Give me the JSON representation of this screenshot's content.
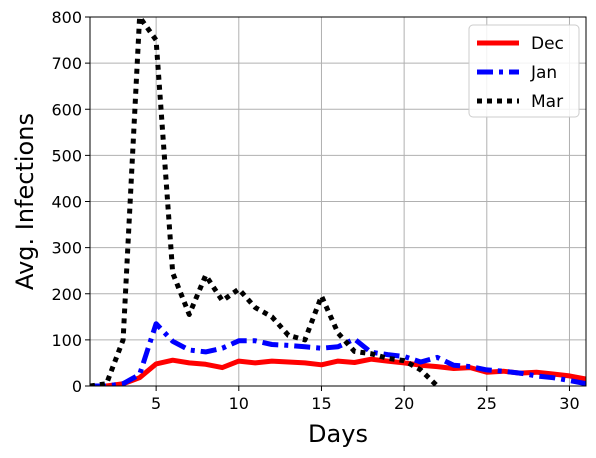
{
  "chart_data": {
    "type": "line",
    "title": "",
    "xlabel": "Days",
    "ylabel": "Avg. Infections",
    "xlim": [
      1,
      31
    ],
    "ylim": [
      0,
      800
    ],
    "xticks": [
      5,
      10,
      15,
      20,
      25,
      30
    ],
    "yticks": [
      0,
      100,
      200,
      300,
      400,
      500,
      600,
      700,
      800
    ],
    "grid": true,
    "legend_position": "upper right",
    "series": [
      {
        "name": "Dec",
        "color": "#ff0000",
        "style": "solid",
        "x": [
          1,
          2,
          3,
          4,
          5,
          6,
          7,
          8,
          9,
          10,
          11,
          12,
          13,
          14,
          15,
          16,
          17,
          18,
          19,
          20,
          21,
          22,
          23,
          24,
          25,
          26,
          27,
          28,
          29,
          30,
          31
        ],
        "y": [
          0,
          0,
          5,
          18,
          48,
          56,
          50,
          47,
          40,
          54,
          50,
          54,
          52,
          50,
          46,
          54,
          51,
          58,
          54,
          50,
          45,
          42,
          38,
          40,
          30,
          32,
          28,
          30,
          26,
          22,
          15
        ]
      },
      {
        "name": "Jan",
        "color": "#0000ff",
        "style": "dashdot",
        "x": [
          1,
          2,
          3,
          4,
          5,
          6,
          7,
          8,
          9,
          10,
          11,
          12,
          13,
          14,
          15,
          16,
          17,
          18,
          19,
          20,
          21,
          22,
          23,
          24,
          25,
          26,
          27,
          28,
          29,
          30,
          31
        ],
        "y": [
          0,
          0,
          5,
          25,
          135,
          97,
          78,
          74,
          82,
          98,
          98,
          90,
          88,
          85,
          82,
          85,
          102,
          73,
          68,
          64,
          52,
          62,
          45,
          42,
          35,
          32,
          28,
          22,
          18,
          12,
          5
        ]
      },
      {
        "name": "Mar",
        "color": "#000000",
        "style": "dotted",
        "x": [
          1,
          2,
          3,
          4,
          5,
          6,
          7,
          8,
          9,
          10,
          11,
          12,
          13,
          14,
          15,
          16,
          17,
          18,
          19,
          20,
          21,
          22
        ],
        "y": [
          0,
          5,
          100,
          800,
          750,
          245,
          155,
          240,
          185,
          210,
          170,
          150,
          110,
          100,
          195,
          115,
          75,
          70,
          60,
          55,
          35,
          0
        ]
      }
    ]
  }
}
